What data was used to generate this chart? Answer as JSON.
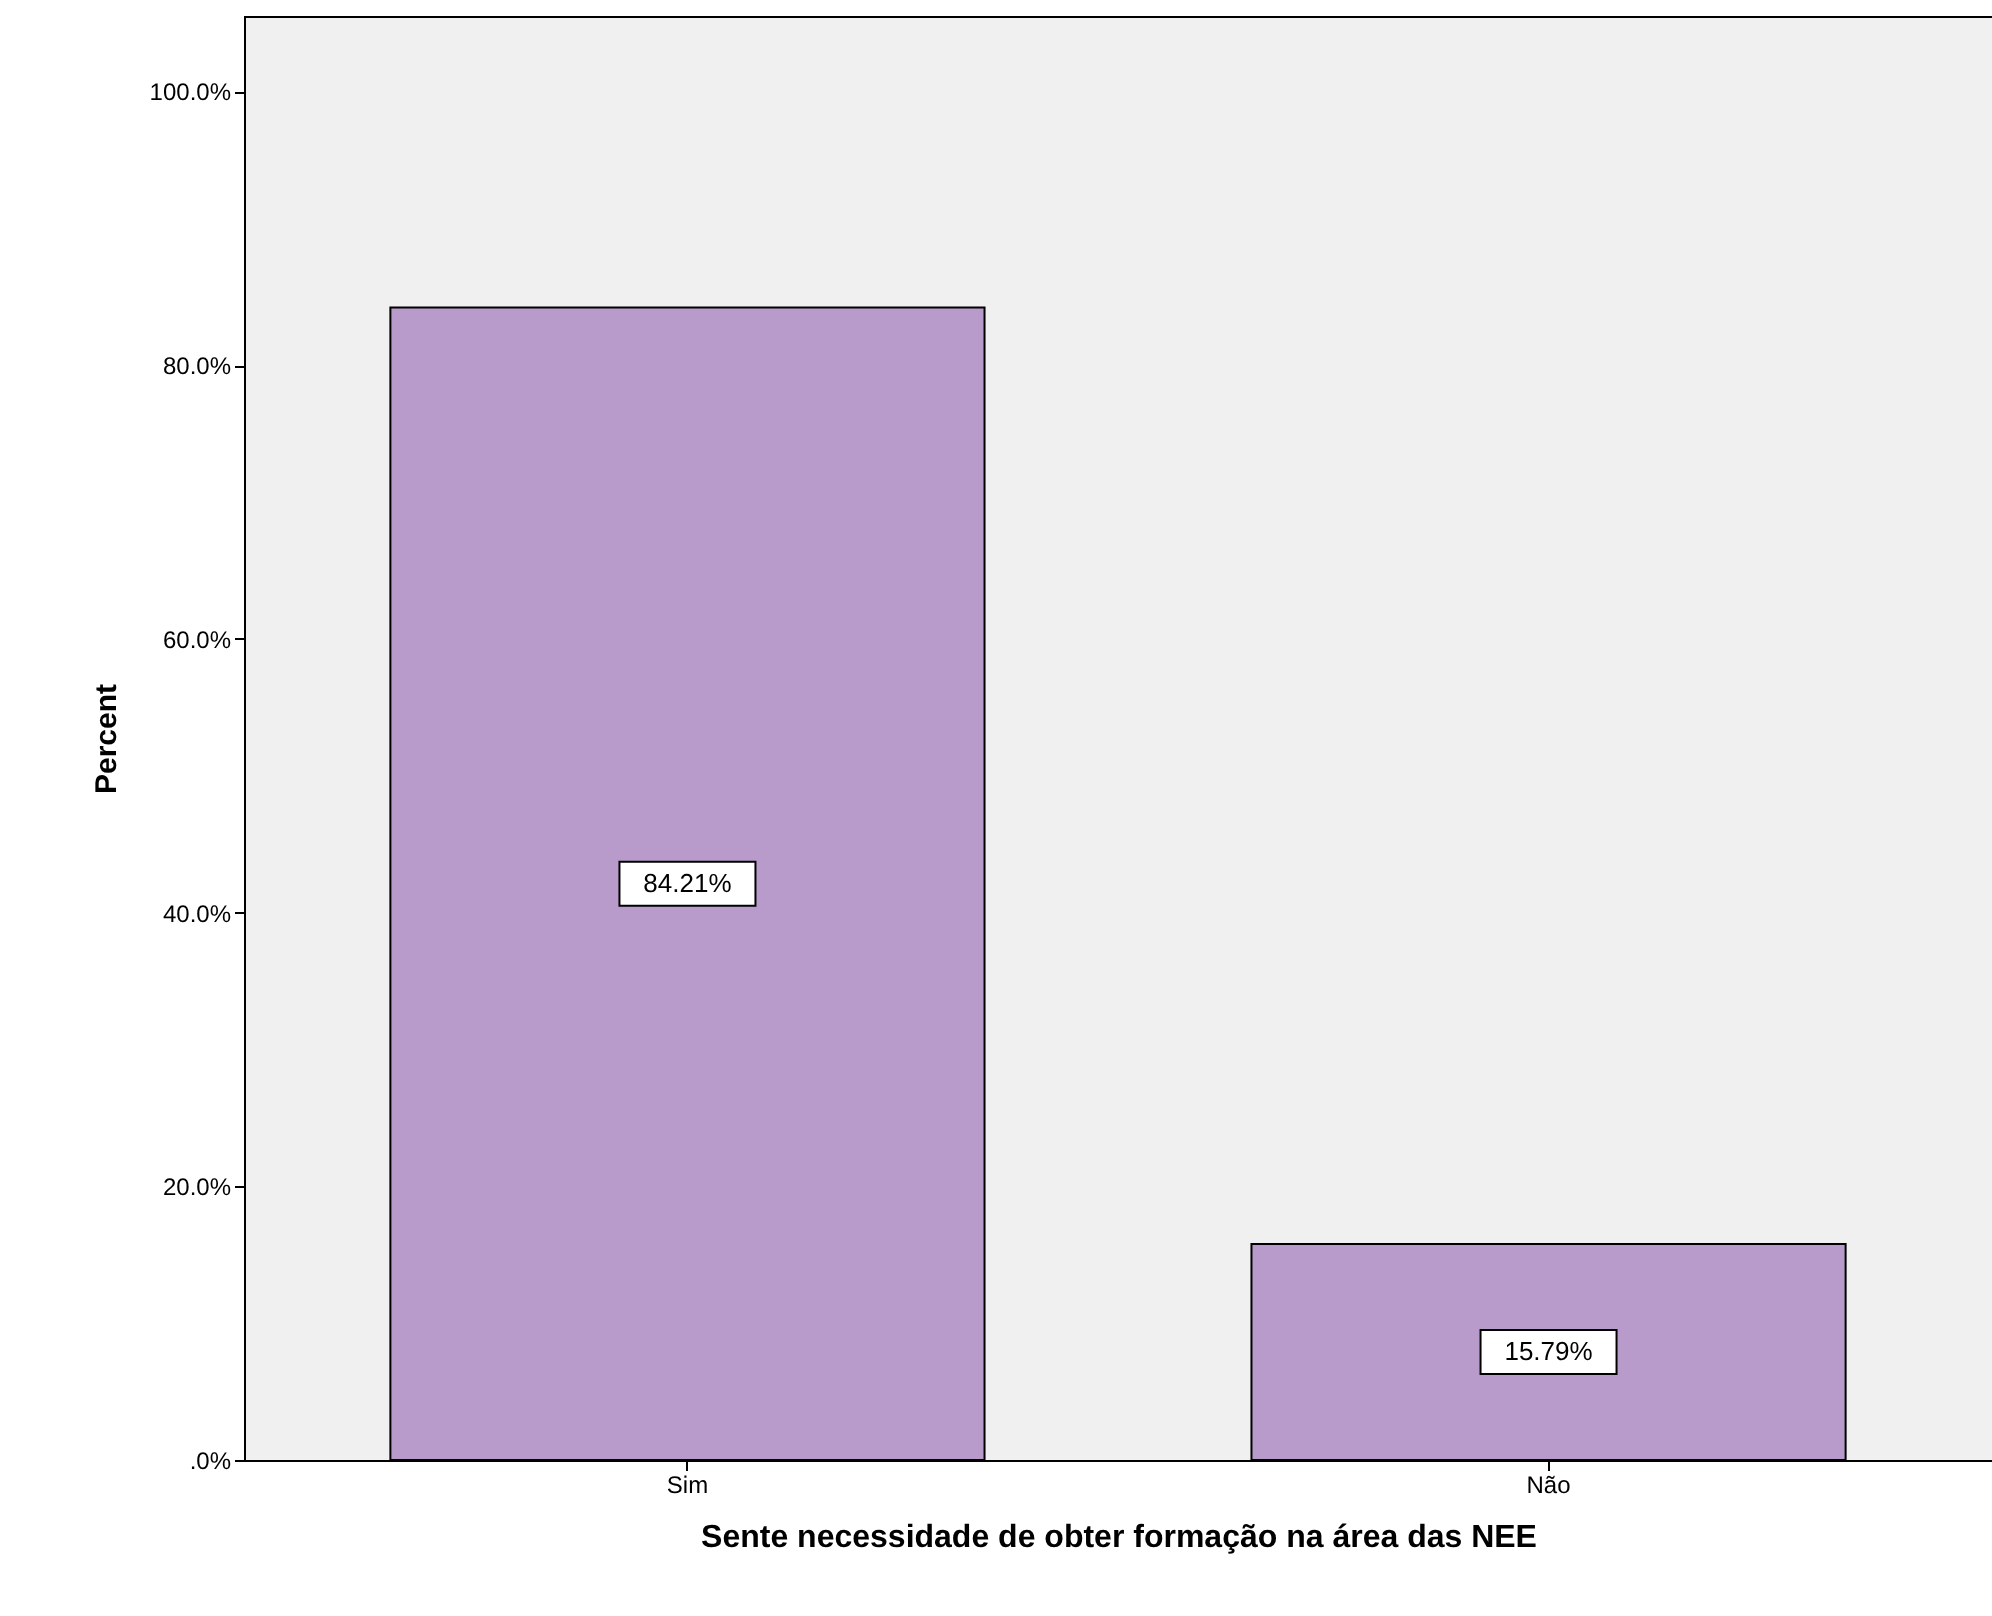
{
  "chart_data": {
    "type": "bar",
    "categories": [
      "Sim",
      "Não"
    ],
    "values": [
      84.21,
      15.79
    ],
    "value_labels": [
      "84.21%",
      "15.79%"
    ],
    "color": "#b89bca",
    "xlabel": "Sente necessidade de obter formação na área das NEE",
    "ylabel": "Percent",
    "ylim": [
      0,
      105.5
    ],
    "yticks": [
      {
        "value": 0,
        "label": ".0%"
      },
      {
        "value": 20,
        "label": "20.0%"
      },
      {
        "value": 40,
        "label": "40.0%"
      },
      {
        "value": 60,
        "label": "60.0%"
      },
      {
        "value": 80,
        "label": "80.0%"
      },
      {
        "value": 100,
        "label": "100.0%"
      }
    ],
    "grid": false
  }
}
